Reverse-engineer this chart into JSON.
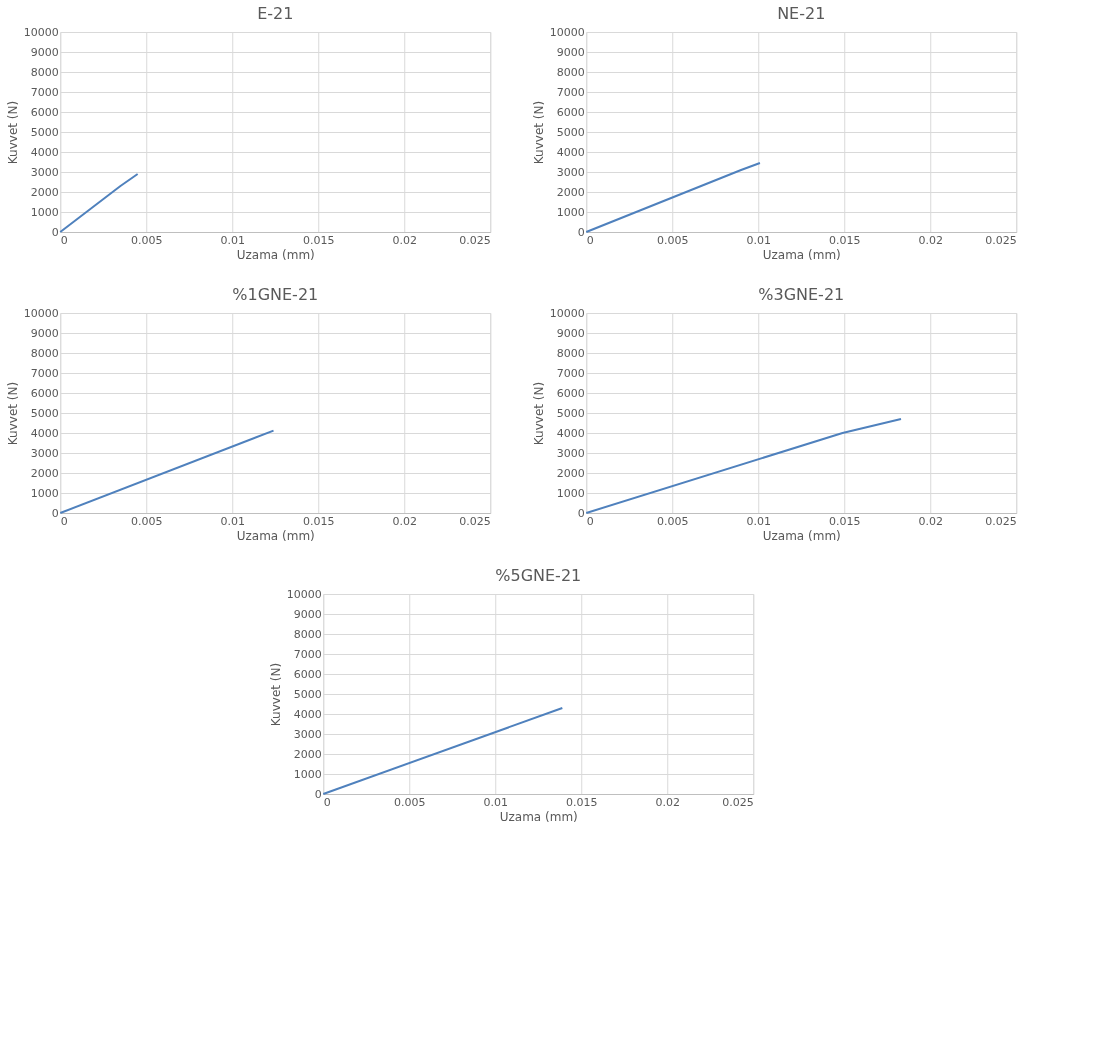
{
  "chart_data": [
    {
      "type": "line",
      "title": "E-21",
      "xlabel": "Uzama (mm)",
      "ylabel": "Kuvvet (N)",
      "xlim": [
        0,
        0.025
      ],
      "ylim": [
        0,
        10000
      ],
      "xticks": [
        0,
        0.005,
        0.01,
        0.015,
        0.02,
        0.025
      ],
      "yticks": [
        0,
        1000,
        2000,
        3000,
        4000,
        5000,
        6000,
        7000,
        8000,
        9000,
        10000
      ],
      "grid": true,
      "series": [
        {
          "color": "#4f81bd",
          "x": [
            0,
            0.0035,
            0.0045
          ],
          "values": [
            0,
            2300,
            2900
          ]
        }
      ]
    },
    {
      "type": "line",
      "title": "NE-21",
      "xlabel": "Uzama (mm)",
      "ylabel": "Kuvvet (N)",
      "xlim": [
        0,
        0.025
      ],
      "ylim": [
        0,
        10000
      ],
      "xticks": [
        0,
        0.005,
        0.01,
        0.015,
        0.02,
        0.025
      ],
      "yticks": [
        0,
        1000,
        2000,
        3000,
        4000,
        5000,
        6000,
        7000,
        8000,
        9000,
        10000
      ],
      "grid": true,
      "series": [
        {
          "color": "#4f81bd",
          "x": [
            0,
            0.009,
            0.0101
          ],
          "values": [
            0,
            3100,
            3450
          ]
        }
      ]
    },
    {
      "type": "line",
      "title": "%1GNE-21",
      "xlabel": "Uzama (mm)",
      "ylabel": "Kuvvet (N)",
      "xlim": [
        0,
        0.025
      ],
      "ylim": [
        0,
        10000
      ],
      "xticks": [
        0,
        0.005,
        0.01,
        0.015,
        0.02,
        0.025
      ],
      "yticks": [
        0,
        1000,
        2000,
        3000,
        4000,
        5000,
        6000,
        7000,
        8000,
        9000,
        10000
      ],
      "grid": true,
      "series": [
        {
          "color": "#4f81bd",
          "x": [
            0,
            0.0124
          ],
          "values": [
            0,
            4120
          ]
        }
      ]
    },
    {
      "type": "line",
      "title": "%3GNE-21",
      "xlabel": "Uzama (mm)",
      "ylabel": "Kuvvet (N)",
      "xlim": [
        0,
        0.025
      ],
      "ylim": [
        0,
        10000
      ],
      "xticks": [
        0,
        0.005,
        0.01,
        0.015,
        0.02,
        0.025
      ],
      "yticks": [
        0,
        1000,
        2000,
        3000,
        4000,
        5000,
        6000,
        7000,
        8000,
        9000,
        10000
      ],
      "grid": true,
      "series": [
        {
          "color": "#4f81bd",
          "x": [
            0,
            0.0149,
            0.0183
          ],
          "values": [
            0,
            4000,
            4700
          ]
        }
      ]
    },
    {
      "type": "line",
      "title": "%5GNE-21",
      "xlabel": "Uzama (mm)",
      "ylabel": "Kuvvet (N)",
      "xlim": [
        0,
        0.025
      ],
      "ylim": [
        0,
        10000
      ],
      "xticks": [
        0,
        0.005,
        0.01,
        0.015,
        0.02,
        0.025
      ],
      "yticks": [
        0,
        1000,
        2000,
        3000,
        4000,
        5000,
        6000,
        7000,
        8000,
        9000,
        10000
      ],
      "grid": true,
      "series": [
        {
          "color": "#4f81bd",
          "x": [
            0,
            0.0139
          ],
          "values": [
            0,
            4300
          ]
        }
      ]
    }
  ]
}
